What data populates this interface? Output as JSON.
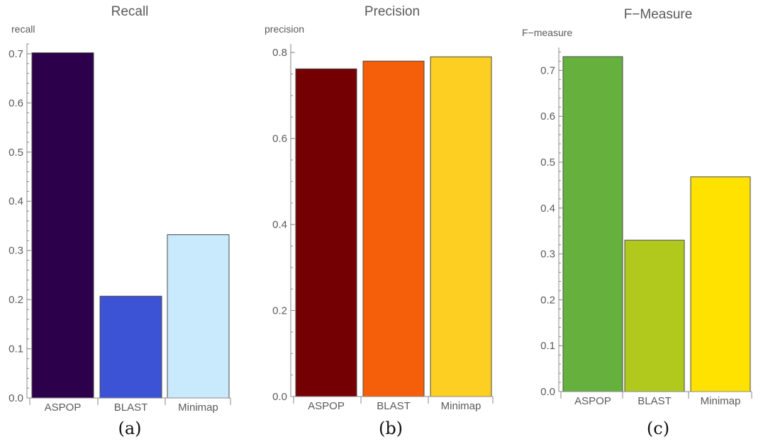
{
  "chart_data": [
    {
      "type": "bar",
      "title": "Recall",
      "ylabel": "recall",
      "caption": "(a)",
      "categories": [
        "ASPOP",
        "BLAST",
        "Minimap"
      ],
      "values": [
        0.702,
        0.207,
        0.332
      ],
      "colors": [
        "#2d004b",
        "#3b53d4",
        "#c8eafc"
      ],
      "ylim": [
        0,
        0.72
      ],
      "yticks": [
        0.0,
        0.1,
        0.2,
        0.3,
        0.4,
        0.5,
        0.6,
        0.7
      ],
      "ytick_labels": [
        "0.0",
        "0.1",
        "0.2",
        "0.3",
        "0.4",
        "0.5",
        "0.6",
        "0.7"
      ],
      "minor_ticks_per_major": 5
    },
    {
      "type": "bar",
      "title": "Precision",
      "ylabel": "precision",
      "caption": "(b)",
      "categories": [
        "ASPOP",
        "BLAST",
        "Minimap"
      ],
      "values": [
        0.762,
        0.78,
        0.79
      ],
      "colors": [
        "#750004",
        "#f55f09",
        "#fdcf23"
      ],
      "ylim": [
        0,
        0.82
      ],
      "yticks": [
        0.0,
        0.2,
        0.4,
        0.6,
        0.8
      ],
      "ytick_labels": [
        "0.0",
        "0.2",
        "0.4",
        "0.6",
        "0.8"
      ],
      "minor_ticks_per_major": 4
    },
    {
      "type": "bar",
      "title": "F−Measure",
      "ylabel": "F−measure",
      "caption": "(c)",
      "categories": [
        "ASPOP",
        "BLAST",
        "Minimap"
      ],
      "values": [
        0.73,
        0.33,
        0.468
      ],
      "colors": [
        "#66b13e",
        "#b0c91c",
        "#ffe200"
      ],
      "ylim": [
        0,
        0.75
      ],
      "yticks": [
        0.0,
        0.1,
        0.2,
        0.3,
        0.4,
        0.5,
        0.6,
        0.7
      ],
      "ytick_labels": [
        "0.0",
        "0.1",
        "0.2",
        "0.3",
        "0.4",
        "0.5",
        "0.6",
        "0.7"
      ],
      "minor_ticks_per_major": 5
    }
  ]
}
